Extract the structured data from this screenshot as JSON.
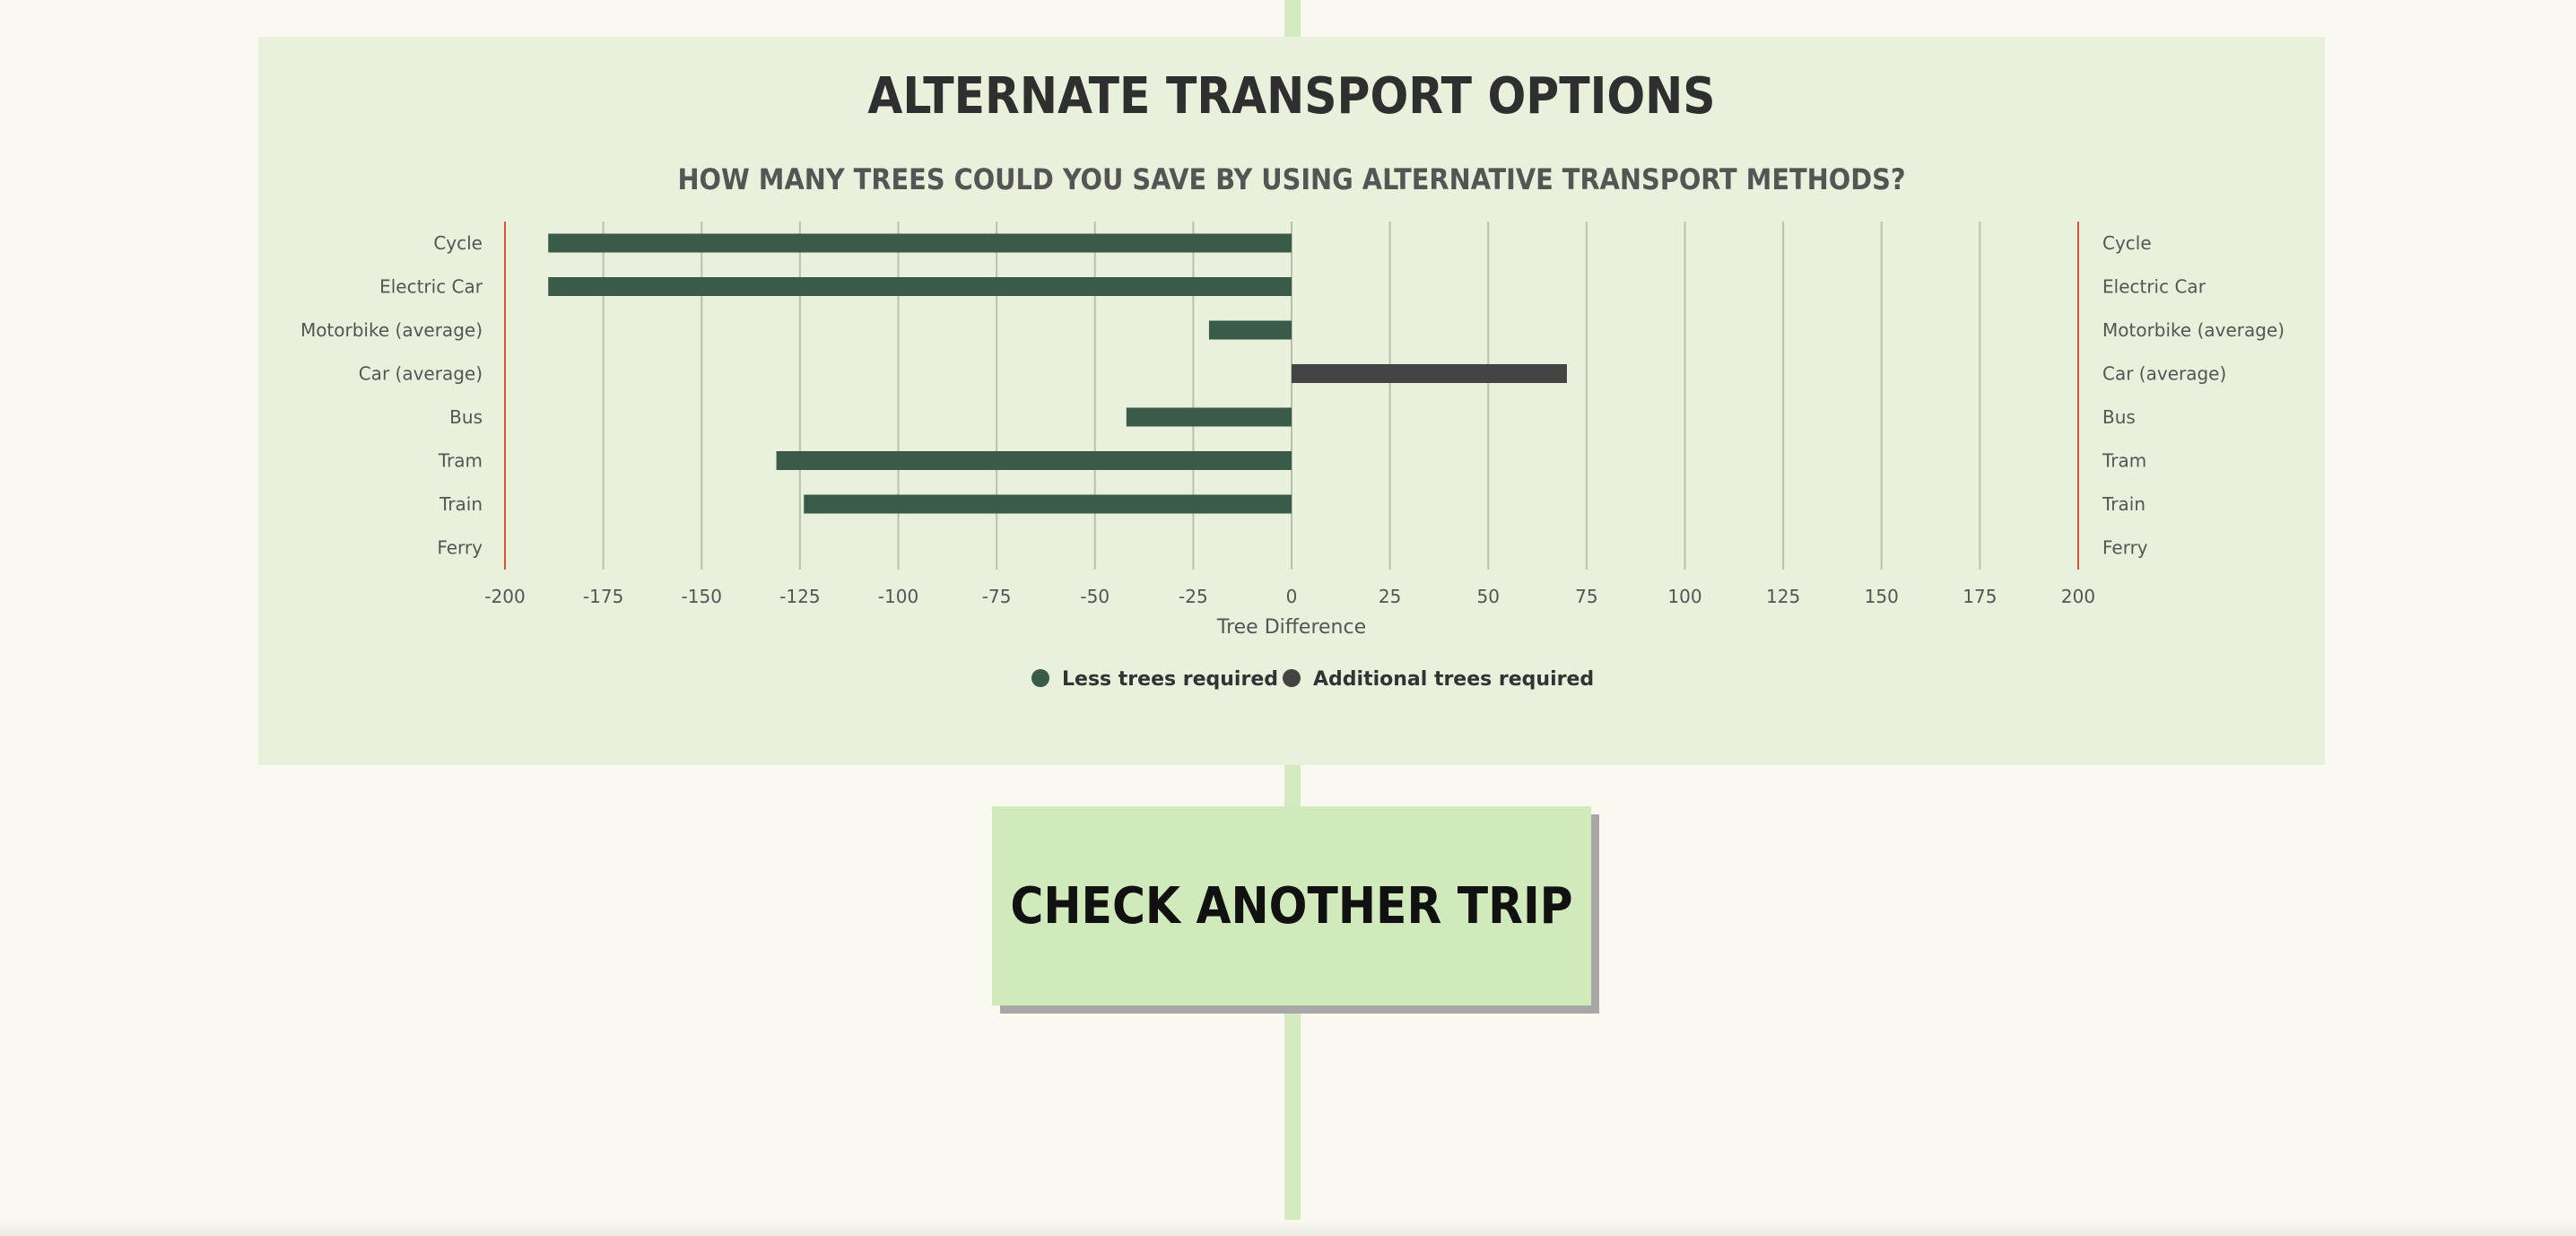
{
  "panel": {
    "title": "ALTERNATE TRANSPORT OPTIONS",
    "subtitle": "HOW MANY TREES COULD YOU SAVE BY USING ALTERNATIVE TRANSPORT METHODS?"
  },
  "chart_data": {
    "type": "bar",
    "orientation": "horizontal",
    "categories": [
      "Cycle",
      "Electric Car",
      "Motorbike (average)",
      "Car (average)",
      "Bus",
      "Tram",
      "Train",
      "Ferry"
    ],
    "values": [
      -189,
      -189,
      -21,
      70,
      -42,
      -131,
      -124,
      0
    ],
    "xlabel": "Tree Difference",
    "ylabel": "",
    "xlim": [
      -200,
      200
    ],
    "xticks": [
      "-200",
      "-175",
      "-150",
      "-125",
      "-100",
      "-75",
      "-50",
      "-25",
      "0",
      "25",
      "50",
      "75",
      "100",
      "125",
      "150",
      "175",
      "200"
    ],
    "grid": true,
    "legend": {
      "placement": "bottom",
      "items": [
        {
          "label": "Less trees required",
          "color": "#3a5a4a"
        },
        {
          "label": "Additional trees required",
          "color": "#444444"
        }
      ]
    },
    "colors": {
      "negative": "#3a5a4a",
      "positive": "#444444",
      "bounds_line": "#d0553c"
    }
  },
  "actions": {
    "check_another": "CHECK ANOTHER TRIP"
  }
}
